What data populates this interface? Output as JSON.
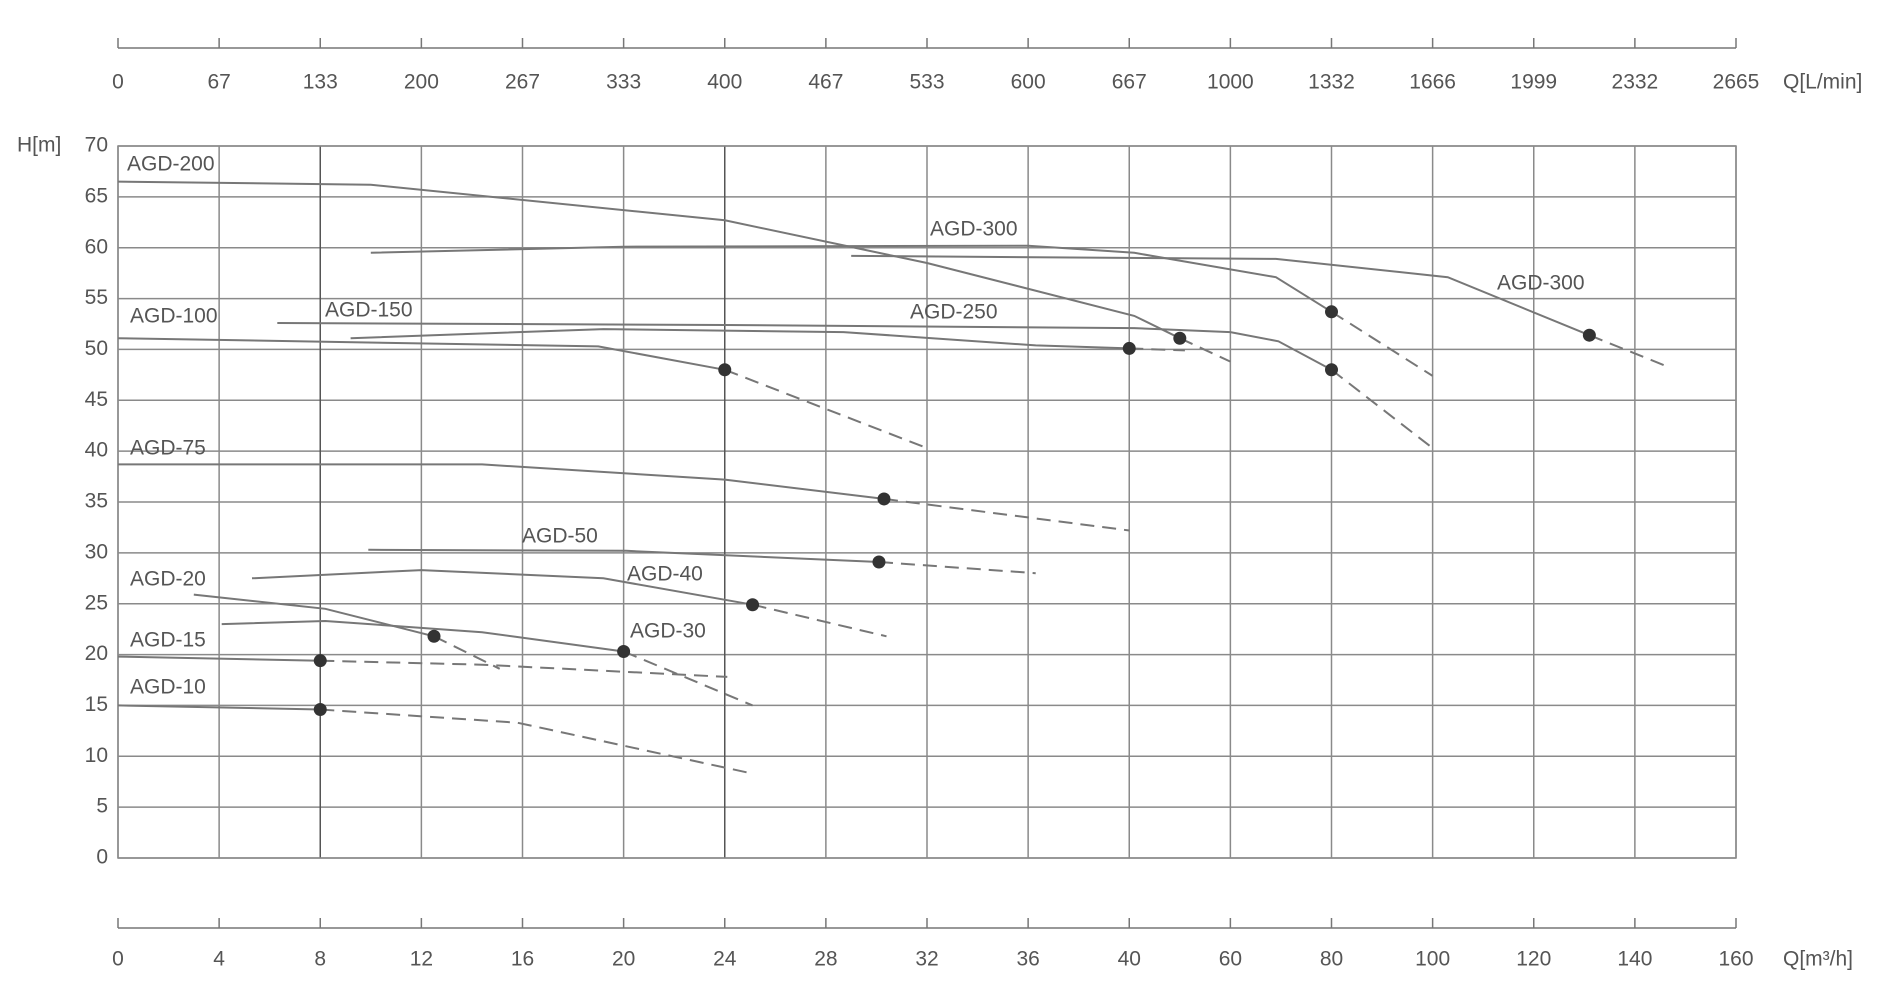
{
  "chart_data": {
    "type": "line",
    "ylabel": "H[m]",
    "xlabel": "Q[m³/h]",
    "x2label": "Q[L/min]",
    "ylim": [
      0,
      70
    ],
    "yticks": [
      0,
      5,
      10,
      15,
      20,
      25,
      30,
      35,
      40,
      45,
      50,
      55,
      60,
      65,
      70
    ],
    "xlim": [
      0,
      160
    ],
    "xticks": [
      0,
      4,
      8,
      12,
      16,
      20,
      24,
      28,
      32,
      36,
      40,
      60,
      80,
      100,
      120,
      140,
      160
    ],
    "x2ticks": [
      0,
      67,
      133,
      200,
      267,
      333,
      400,
      467,
      533,
      600,
      667,
      1000,
      1332,
      1666,
      1999,
      2332,
      2665
    ],
    "grid": true,
    "series": [
      {
        "name": "AGD-200",
        "color": "#777777",
        "x": [
          0,
          10,
          24,
          32,
          41,
          60
        ],
        "values": [
          66.5,
          66.2,
          62.7,
          58.5,
          53.3,
          48.8
        ],
        "marker": {
          "x": 50,
          "y": 51.1
        }
      },
      {
        "name": "AGD-300",
        "color": "#777777",
        "x": [
          10,
          20,
          36,
          41,
          69,
          100
        ],
        "values": [
          59.5,
          60.1,
          60.2,
          59.5,
          57.1,
          47.4
        ],
        "marker": {
          "x": 80,
          "y": 53.7
        }
      },
      {
        "name": "AGD-300",
        "color": "#777777",
        "x": [
          29,
          69,
          103,
          147
        ],
        "values": [
          59.2,
          58.9,
          57.1,
          48.2
        ],
        "marker": {
          "x": 131,
          "y": 51.4
        }
      },
      {
        "name": "AGD-250",
        "color": "#777777",
        "x": [
          6.3,
          24,
          41,
          60,
          69.5,
          100
        ],
        "values": [
          52.6,
          52.4,
          52.1,
          51.7,
          50.8,
          40.3
        ],
        "marker": {
          "x": 80,
          "y": 48
        }
      },
      {
        "name": "AGD-150",
        "color": "#777777",
        "x": [
          9.2,
          19.2,
          28.7,
          36.3,
          51
        ],
        "values": [
          51.1,
          52,
          51.7,
          50.4,
          49.9
        ],
        "marker": {
          "x": 40,
          "y": 50.1
        }
      },
      {
        "name": "AGD-100",
        "color": "#777777",
        "x": [
          0,
          19,
          32
        ],
        "values": [
          51.1,
          50.3,
          40.3
        ],
        "marker": {
          "x": 24,
          "y": 48
        }
      },
      {
        "name": "AGD-75",
        "color": "#777777",
        "x": [
          0,
          14.4,
          24,
          40
        ],
        "values": [
          38.7,
          38.7,
          37.2,
          32.2
        ],
        "marker": {
          "x": 30.3,
          "y": 35.3
        }
      },
      {
        "name": "AGD-50",
        "color": "#777777",
        "x": [
          9.9,
          20.1,
          36.3
        ],
        "values": [
          30.3,
          30.2,
          28
        ],
        "marker": {
          "x": 30.1,
          "y": 29.1
        }
      },
      {
        "name": "AGD-40",
        "color": "#777777",
        "x": [
          5.3,
          12,
          19.2,
          30.4
        ],
        "values": [
          27.5,
          28.3,
          27.5,
          21.8
        ],
        "marker": {
          "x": 25.1,
          "y": 24.9
        }
      },
      {
        "name": "AGD-30",
        "color": "#777777",
        "x": [
          4.1,
          8.2,
          14.4,
          25.1
        ],
        "values": [
          23,
          23.3,
          22.2,
          15
        ],
        "marker": {
          "x": 20,
          "y": 20.3
        }
      },
      {
        "name": "AGD-20",
        "color": "#777777",
        "x": [
          3,
          8.2,
          15.1
        ],
        "values": [
          25.9,
          24.5,
          18.6
        ],
        "marker": {
          "x": 12.5,
          "y": 21.8
        }
      },
      {
        "name": "AGD-15",
        "color": "#777777",
        "x": [
          0,
          14.4,
          24.1
        ],
        "values": [
          19.8,
          19,
          17.8
        ],
        "marker": {
          "x": 8,
          "y": 19.4
        }
      },
      {
        "name": "AGD-10",
        "color": "#777777",
        "x": [
          0,
          15.8,
          25.1
        ],
        "values": [
          15,
          13.3,
          8.3
        ],
        "marker": {
          "x": 8,
          "y": 14.6
        }
      }
    ]
  }
}
